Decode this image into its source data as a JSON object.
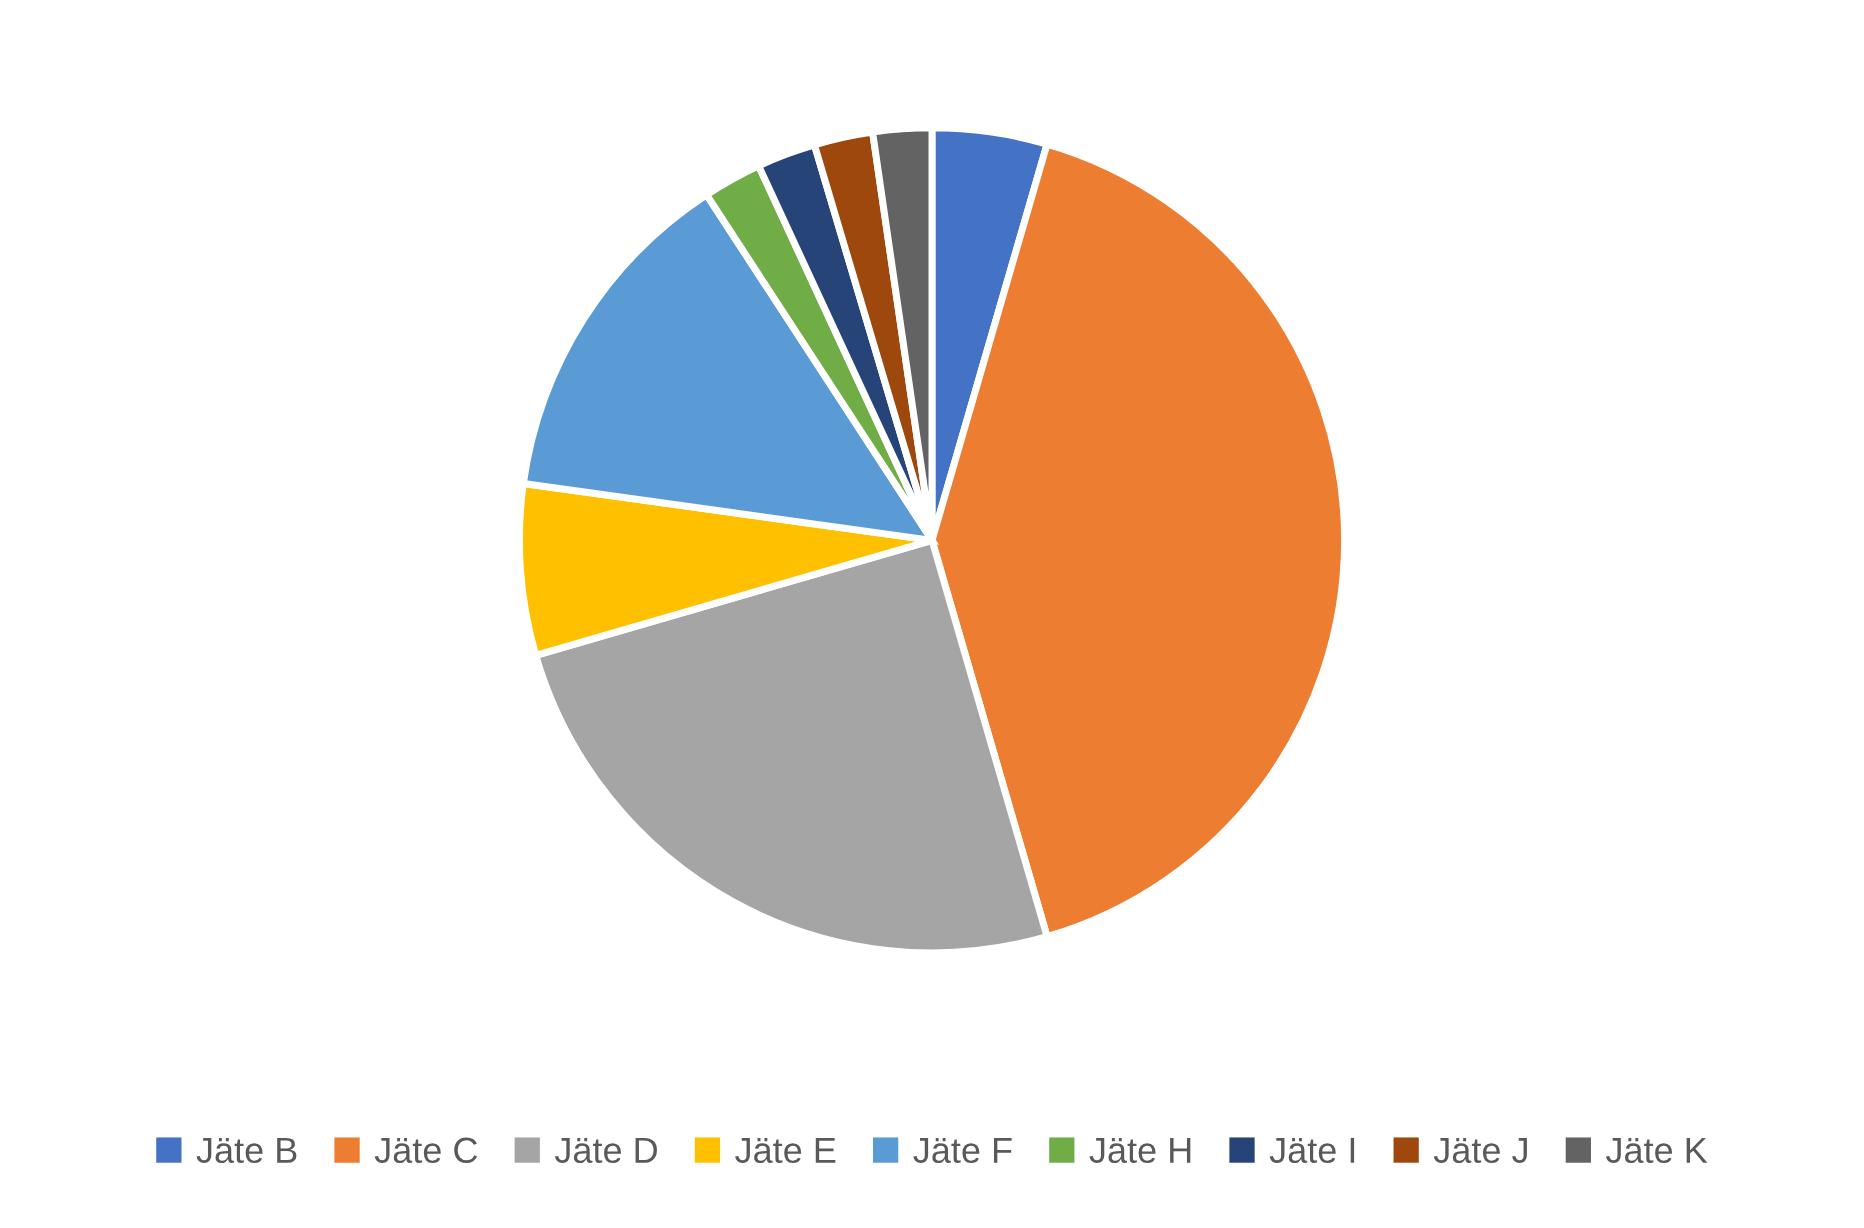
{
  "chart_data": {
    "type": "pie",
    "categories": [
      "Jäte B",
      "Jäte C",
      "Jäte D",
      "Jäte E",
      "Jäte F",
      "Jäte H",
      "Jäte I",
      "Jäte J",
      "Jäte K"
    ],
    "values": [
      4.5,
      41,
      25,
      6.7,
      13.6,
      2.3,
      2.3,
      2.3,
      2.3
    ],
    "colors": [
      "#4472c4",
      "#ed7d31",
      "#a5a5a5",
      "#ffc000",
      "#5b9bd5",
      "#70ad47",
      "#264478",
      "#9e480e",
      "#636363"
    ],
    "legend": "bottom"
  }
}
